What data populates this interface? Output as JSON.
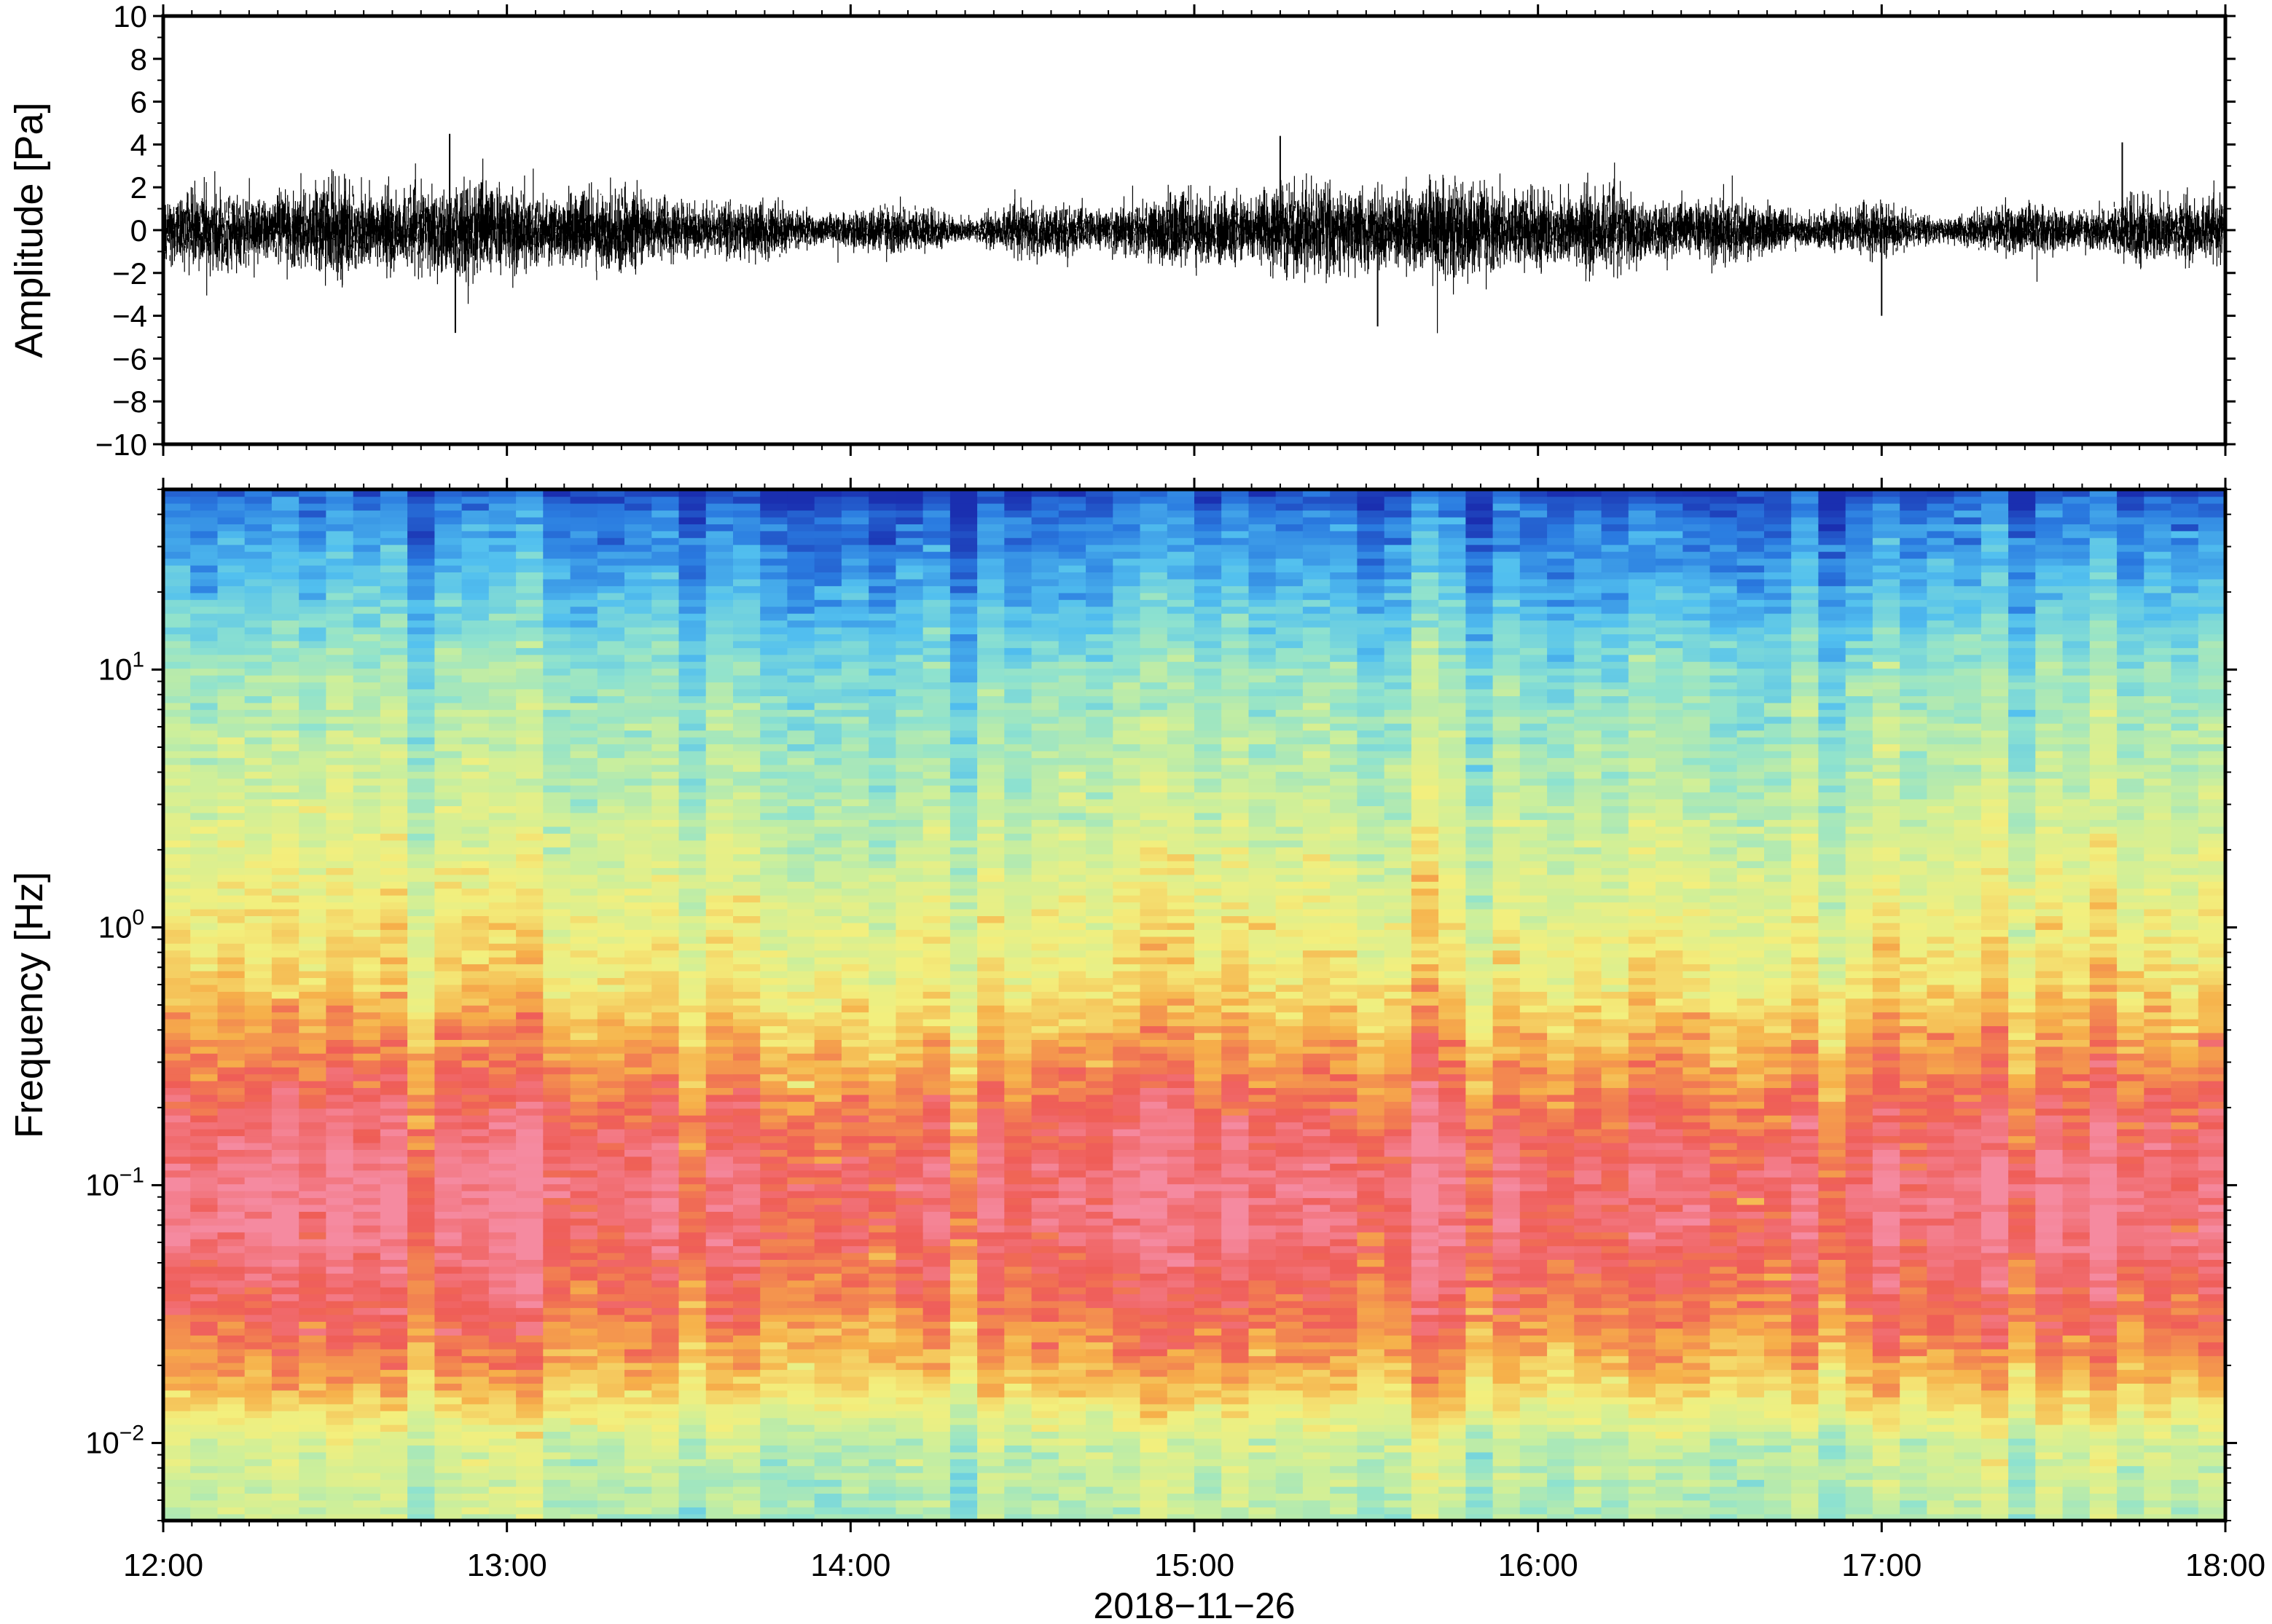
{
  "chart_data": [
    {
      "type": "line",
      "panel": "waveform",
      "ylabel": "Amplitude [Pa]",
      "ylim": [
        -10,
        10
      ],
      "y_ticks": [
        -10,
        -8,
        -6,
        -4,
        -2,
        0,
        2,
        4,
        6,
        8,
        10
      ],
      "y_tick_labels": [
        "−10",
        "−8",
        "−6",
        "−4",
        "−2",
        "0",
        "2",
        "4",
        "6",
        "8",
        "10"
      ],
      "x_range": [
        "12:00",
        "18:00"
      ],
      "envelope_hint": {
        "typical_max": 2.0,
        "peaks": [
          {
            "time": "12:50",
            "value": 4.5
          },
          {
            "time": "12:51",
            "value": -4.8
          },
          {
            "time": "15:15",
            "value": 4.4
          },
          {
            "time": "15:32",
            "value": -4.5
          },
          {
            "time": "17:00",
            "value": -4.0
          },
          {
            "time": "17:42",
            "value": 4.1
          }
        ]
      },
      "line_color": "#000000"
    },
    {
      "type": "heatmap",
      "panel": "spectrogram",
      "ylabel": "Frequency [Hz]",
      "xlabel": "2018−11−26",
      "y_scale": "log",
      "ylim": [
        0.005,
        50
      ],
      "y_ticks": [
        {
          "value": 0.01,
          "base": "10",
          "exp": "−2"
        },
        {
          "value": 0.1,
          "base": "10",
          "exp": "−1"
        },
        {
          "value": 1,
          "base": "10",
          "exp": "0"
        },
        {
          "value": 10,
          "base": "10",
          "exp": "1"
        }
      ],
      "x_ticks": [
        "12:00",
        "13:00",
        "14:00",
        "15:00",
        "16:00",
        "17:00",
        "18:00"
      ],
      "colors": [
        "#1a2fb0",
        "#2a7be0",
        "#52c0ef",
        "#8ee2cf",
        "#cdef9a",
        "#f3ef7d",
        "#f6b04a",
        "#ef5d57",
        "#f58aa0"
      ]
    }
  ]
}
